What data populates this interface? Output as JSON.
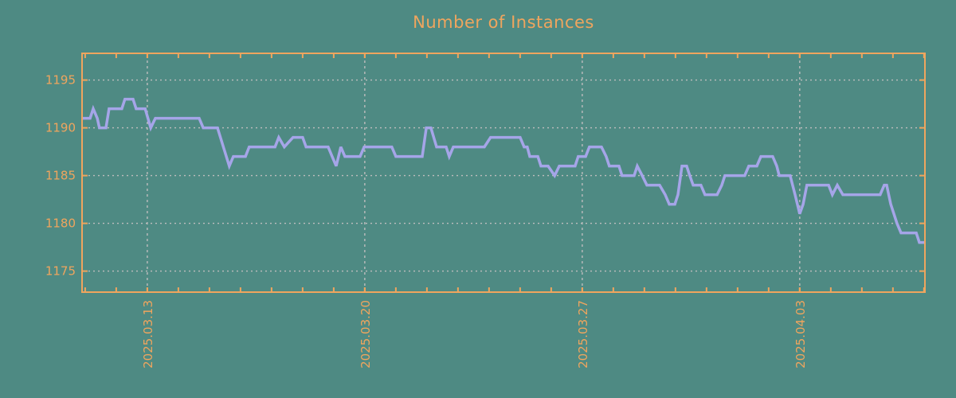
{
  "chart_data": {
    "type": "line",
    "title": "Number of Instances",
    "legend": null,
    "grid": true,
    "x_axis": {
      "unit": "days (t = days from left edge of plot; labeled ticks are weekly dates)",
      "range": [
        0,
        27.13
      ],
      "major_ticks": [
        {
          "t": 2.1,
          "label": "2025.03.13"
        },
        {
          "t": 9.1,
          "label": "2025.03.20"
        },
        {
          "t": 16.1,
          "label": "2025.03.27"
        },
        {
          "t": 23.1,
          "label": "2025.04.03"
        }
      ],
      "minor_tick_start": 0.1,
      "minor_tick_step": 1,
      "minor_tick_count": 28,
      "label_rotation_deg": -90
    },
    "y_axis": {
      "range": [
        1172.8,
        1197.8
      ],
      "ticks": [
        1175,
        1180,
        1185,
        1190,
        1195
      ]
    },
    "series": [
      {
        "name": "instances",
        "color": "#a5a5e8",
        "points": [
          [
            0.0,
            1191
          ],
          [
            0.26,
            1191
          ],
          [
            0.36,
            1192
          ],
          [
            0.49,
            1191
          ],
          [
            0.56,
            1190
          ],
          [
            0.77,
            1190
          ],
          [
            0.87,
            1192
          ],
          [
            1.28,
            1192
          ],
          [
            1.38,
            1193
          ],
          [
            1.64,
            1193
          ],
          [
            1.74,
            1192
          ],
          [
            2.03,
            1192
          ],
          [
            2.21,
            1190
          ],
          [
            2.36,
            1191
          ],
          [
            3.77,
            1191
          ],
          [
            3.9,
            1190
          ],
          [
            4.36,
            1190
          ],
          [
            4.74,
            1186
          ],
          [
            4.87,
            1187
          ],
          [
            5.26,
            1187
          ],
          [
            5.38,
            1188
          ],
          [
            6.21,
            1188
          ],
          [
            6.33,
            1189
          ],
          [
            6.51,
            1188
          ],
          [
            6.79,
            1189
          ],
          [
            7.1,
            1189
          ],
          [
            7.21,
            1188
          ],
          [
            7.92,
            1188
          ],
          [
            8.05,
            1187
          ],
          [
            8.18,
            1186
          ],
          [
            8.33,
            1188
          ],
          [
            8.46,
            1187
          ],
          [
            8.95,
            1187
          ],
          [
            9.08,
            1188
          ],
          [
            9.97,
            1188
          ],
          [
            10.1,
            1187
          ],
          [
            10.95,
            1187
          ],
          [
            11.08,
            1190
          ],
          [
            11.23,
            1190
          ],
          [
            11.41,
            1188
          ],
          [
            11.72,
            1188
          ],
          [
            11.82,
            1187
          ],
          [
            11.95,
            1188
          ],
          [
            12.95,
            1188
          ],
          [
            13.15,
            1189
          ],
          [
            14.1,
            1189
          ],
          [
            14.23,
            1188
          ],
          [
            14.33,
            1188
          ],
          [
            14.41,
            1187
          ],
          [
            14.67,
            1187
          ],
          [
            14.77,
            1186
          ],
          [
            15.0,
            1186
          ],
          [
            15.21,
            1185
          ],
          [
            15.36,
            1186
          ],
          [
            15.87,
            1186
          ],
          [
            15.97,
            1187
          ],
          [
            16.21,
            1187
          ],
          [
            16.33,
            1188
          ],
          [
            16.72,
            1188
          ],
          [
            16.87,
            1187
          ],
          [
            16.97,
            1186
          ],
          [
            17.28,
            1186
          ],
          [
            17.38,
            1185
          ],
          [
            17.77,
            1185
          ],
          [
            17.87,
            1186
          ],
          [
            18.03,
            1185
          ],
          [
            18.18,
            1184
          ],
          [
            18.59,
            1184
          ],
          [
            18.77,
            1183
          ],
          [
            18.9,
            1182
          ],
          [
            19.08,
            1182
          ],
          [
            19.18,
            1183
          ],
          [
            19.31,
            1186
          ],
          [
            19.46,
            1186
          ],
          [
            19.56,
            1185
          ],
          [
            19.67,
            1184
          ],
          [
            19.92,
            1184
          ],
          [
            20.05,
            1183
          ],
          [
            20.44,
            1183
          ],
          [
            20.59,
            1184
          ],
          [
            20.69,
            1185
          ],
          [
            21.33,
            1185
          ],
          [
            21.46,
            1186
          ],
          [
            21.72,
            1186
          ],
          [
            21.85,
            1187
          ],
          [
            22.23,
            1187
          ],
          [
            22.36,
            1186
          ],
          [
            22.44,
            1185
          ],
          [
            22.79,
            1185
          ],
          [
            22.95,
            1183
          ],
          [
            23.1,
            1181
          ],
          [
            23.21,
            1182
          ],
          [
            23.33,
            1184
          ],
          [
            24.03,
            1184
          ],
          [
            24.15,
            1183
          ],
          [
            24.31,
            1184
          ],
          [
            24.49,
            1183
          ],
          [
            25.69,
            1183
          ],
          [
            25.82,
            1184
          ],
          [
            25.9,
            1184
          ],
          [
            26.03,
            1182
          ],
          [
            26.13,
            1181
          ],
          [
            26.23,
            1180
          ],
          [
            26.36,
            1179
          ],
          [
            26.85,
            1179
          ],
          [
            26.95,
            1178
          ],
          [
            27.13,
            1178
          ]
        ]
      }
    ],
    "colors": {
      "background": "#4e8a83",
      "frame": "#efa55e",
      "text": "#efa55e",
      "grid": "#bdbdbd"
    }
  }
}
